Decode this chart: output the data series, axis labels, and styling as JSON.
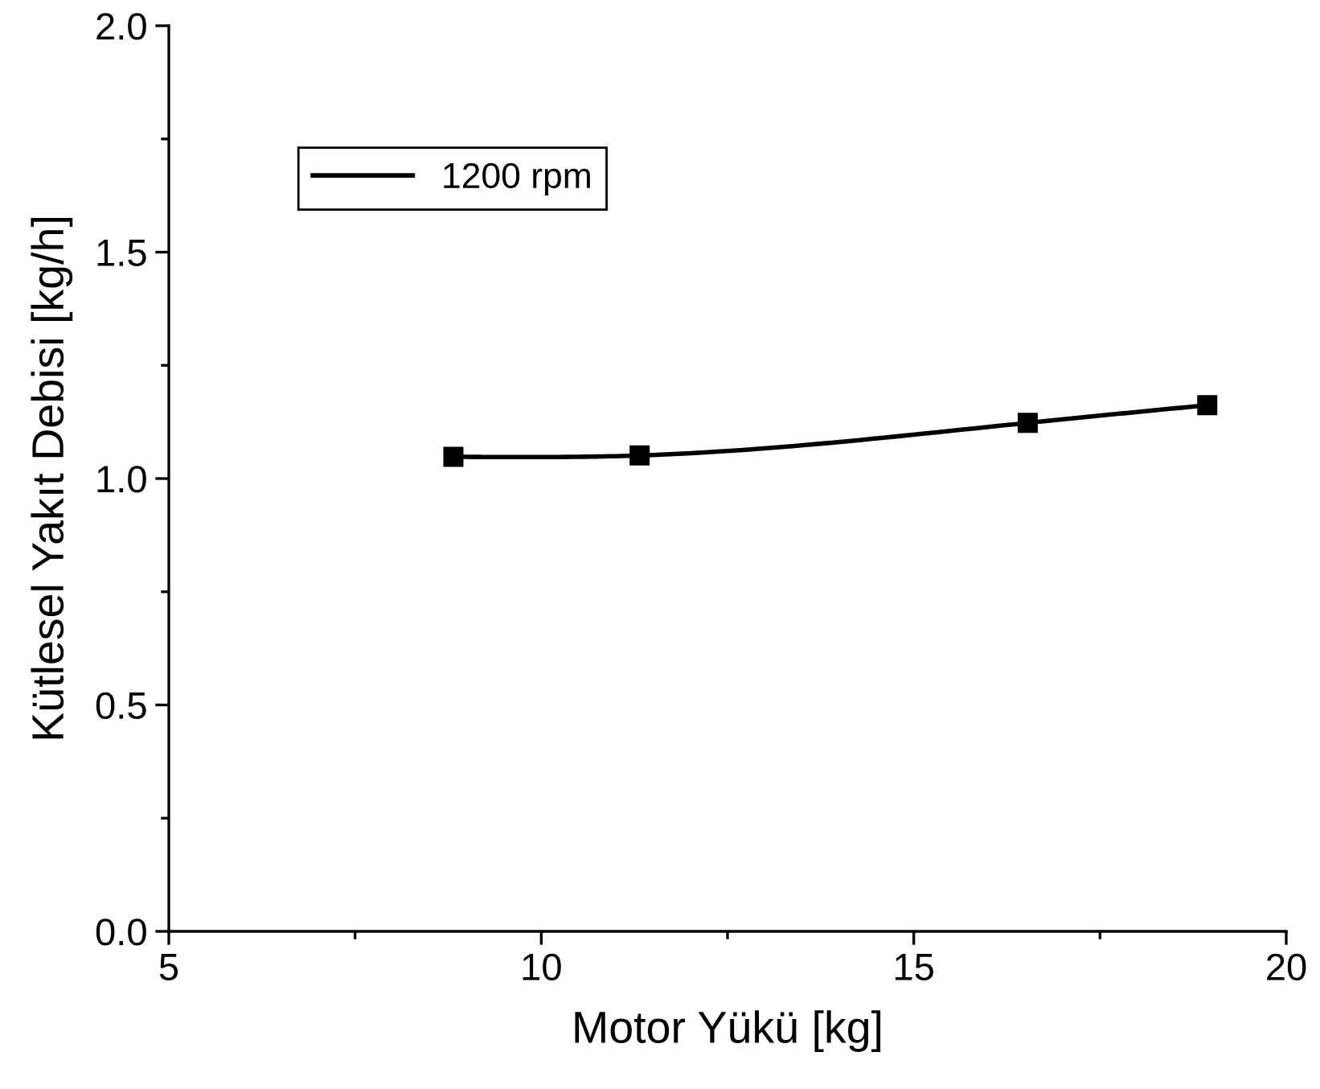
{
  "chart_data": {
    "type": "line",
    "xlabel": "Motor Yükü [kg]",
    "ylabel": "Kütlesel Yakıt Debisi [kg/h]",
    "x": [
      8.82,
      11.32,
      16.53,
      18.94
    ],
    "series": [
      {
        "name": "1200 rpm",
        "color": "#000000",
        "values": [
          1.048,
          1.051,
          1.123,
          1.162
        ]
      }
    ],
    "xlim": [
      5,
      20
    ],
    "xticks": [
      5,
      10,
      15,
      20
    ],
    "ylim": [
      0,
      2.0
    ],
    "yticks": [
      {
        "value": 0,
        "label": "0.0"
      },
      {
        "value": 0.5,
        "label": "0.5"
      },
      {
        "value": 1.0,
        "label": "1.0"
      },
      {
        "value": 1.5,
        "label": "1.5"
      },
      {
        "value": 2.0,
        "label": "2.0"
      }
    ],
    "marker": "square",
    "line_style": "solid",
    "legend": "top left",
    "grid": false
  }
}
